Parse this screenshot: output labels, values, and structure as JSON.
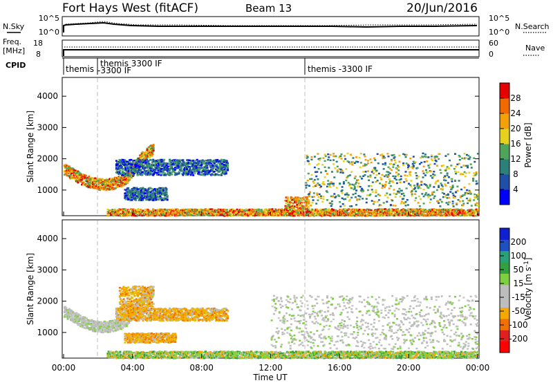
{
  "header": {
    "title": "Fort Hays West (fitACF)",
    "beam": "Beam 13",
    "date": "20/Jun/2016"
  },
  "summary_panels": {
    "nsky_label": "N.Sky",
    "nsearch_label": "N.Search",
    "noise_ticks_left": [
      "10^5",
      "10^0"
    ],
    "noise_ticks_right": [
      "10^5",
      "10^0"
    ],
    "freq_label_line1": "Freq.",
    "freq_label_line2": "[MHz]",
    "freq_ticks": [
      "18",
      "8"
    ],
    "nave_label": "Nave",
    "nave_ticks": [
      "60",
      "0"
    ],
    "cpid_label": "CPID",
    "cpid_segments": [
      {
        "text": "themis",
        "line2": ""
      },
      {
        "text": "themis 3300 IF",
        "line2": "-3300 IF"
      },
      {
        "text": "themis -3300 IF",
        "line2": ""
      }
    ]
  },
  "time_axis": {
    "label": "Time UT",
    "ticks": [
      "00:00",
      "04:00",
      "08:00",
      "12:00",
      "16:00",
      "20:00",
      "00:00"
    ]
  },
  "chart_data": [
    {
      "type": "heatmap",
      "name": "power",
      "ylabel": "Slant Range [km]",
      "y_ticks": [
        "4000",
        "3000",
        "2000",
        "1000"
      ],
      "ylim": [
        180,
        4600
      ],
      "xlim": [
        0,
        24
      ],
      "colorbar_label": "Power [dB]",
      "colorbar_ticks": [
        "28",
        "24",
        "20",
        "16",
        "12",
        "8",
        "4"
      ],
      "colorbar_colors": [
        "#0000ff",
        "#1f4fa6",
        "#2d7f7a",
        "#4fa35a",
        "#e6d21e",
        "#f3a00b",
        "#f06a00",
        "#e60000"
      ],
      "features": [
        {
          "band": "arc",
          "t_start": 0.0,
          "t_end": 5.2,
          "range_min": 1250,
          "range_max": 2400,
          "dominant": "high"
        },
        {
          "band": "line",
          "t_start": 3.0,
          "t_end": 9.5,
          "range_min": 1500,
          "range_max": 2000,
          "dominant": "low"
        },
        {
          "band": "line",
          "t_start": 3.5,
          "t_end": 6.0,
          "range_min": 700,
          "range_max": 1100,
          "dominant": "low"
        },
        {
          "band": "ground",
          "t_start": 2.5,
          "t_end": 24.0,
          "range_min": 200,
          "range_max": 420,
          "dominant": "high"
        },
        {
          "band": "patch",
          "t_start": 12.8,
          "t_end": 14.2,
          "range_min": 250,
          "range_max": 800,
          "dominant": "high"
        },
        {
          "band": "scatter",
          "t_start": 14.0,
          "t_end": 24.0,
          "range_min": 500,
          "range_max": 2200,
          "dominant": "mid"
        }
      ]
    },
    {
      "type": "heatmap",
      "name": "velocity",
      "ylabel": "Slant Range [km]",
      "y_ticks": [
        "4000",
        "3000",
        "2000",
        "1000"
      ],
      "ylim": [
        180,
        4600
      ],
      "xlim": [
        0,
        24
      ],
      "colorbar_label": "Velocity [m s^-1]",
      "colorbar_ticks": [
        "200",
        "100",
        "50",
        "15",
        "-15",
        "-50",
        "-100",
        "-200"
      ],
      "colorbar_colors": [
        "#ff0000",
        "#e02020",
        "#f07000",
        "#f5a800",
        "#bdbdbd",
        "#bdbdbd",
        "#7fd040",
        "#32a040",
        "#2aa078",
        "#2050c0",
        "#1020d0"
      ],
      "features": [
        {
          "band": "arc",
          "t_start": 0.0,
          "t_end": 5.2,
          "range_min": 1250,
          "range_max": 2400,
          "dominant": "grey"
        },
        {
          "band": "patch",
          "t_start": 3.2,
          "t_end": 5.2,
          "range_min": 1800,
          "range_max": 2500,
          "dominant": "orange"
        },
        {
          "band": "line",
          "t_start": 3.0,
          "t_end": 9.5,
          "range_min": 1400,
          "range_max": 1800,
          "dominant": "orange"
        },
        {
          "band": "line",
          "t_start": 3.5,
          "t_end": 6.5,
          "range_min": 700,
          "range_max": 1000,
          "dominant": "orange"
        },
        {
          "band": "ground",
          "t_start": 2.5,
          "t_end": 24.0,
          "range_min": 200,
          "range_max": 420,
          "dominant": "green"
        },
        {
          "band": "scatter",
          "t_start": 12.0,
          "t_end": 24.0,
          "range_min": 500,
          "range_max": 2200,
          "dominant": "grey"
        }
      ]
    }
  ]
}
